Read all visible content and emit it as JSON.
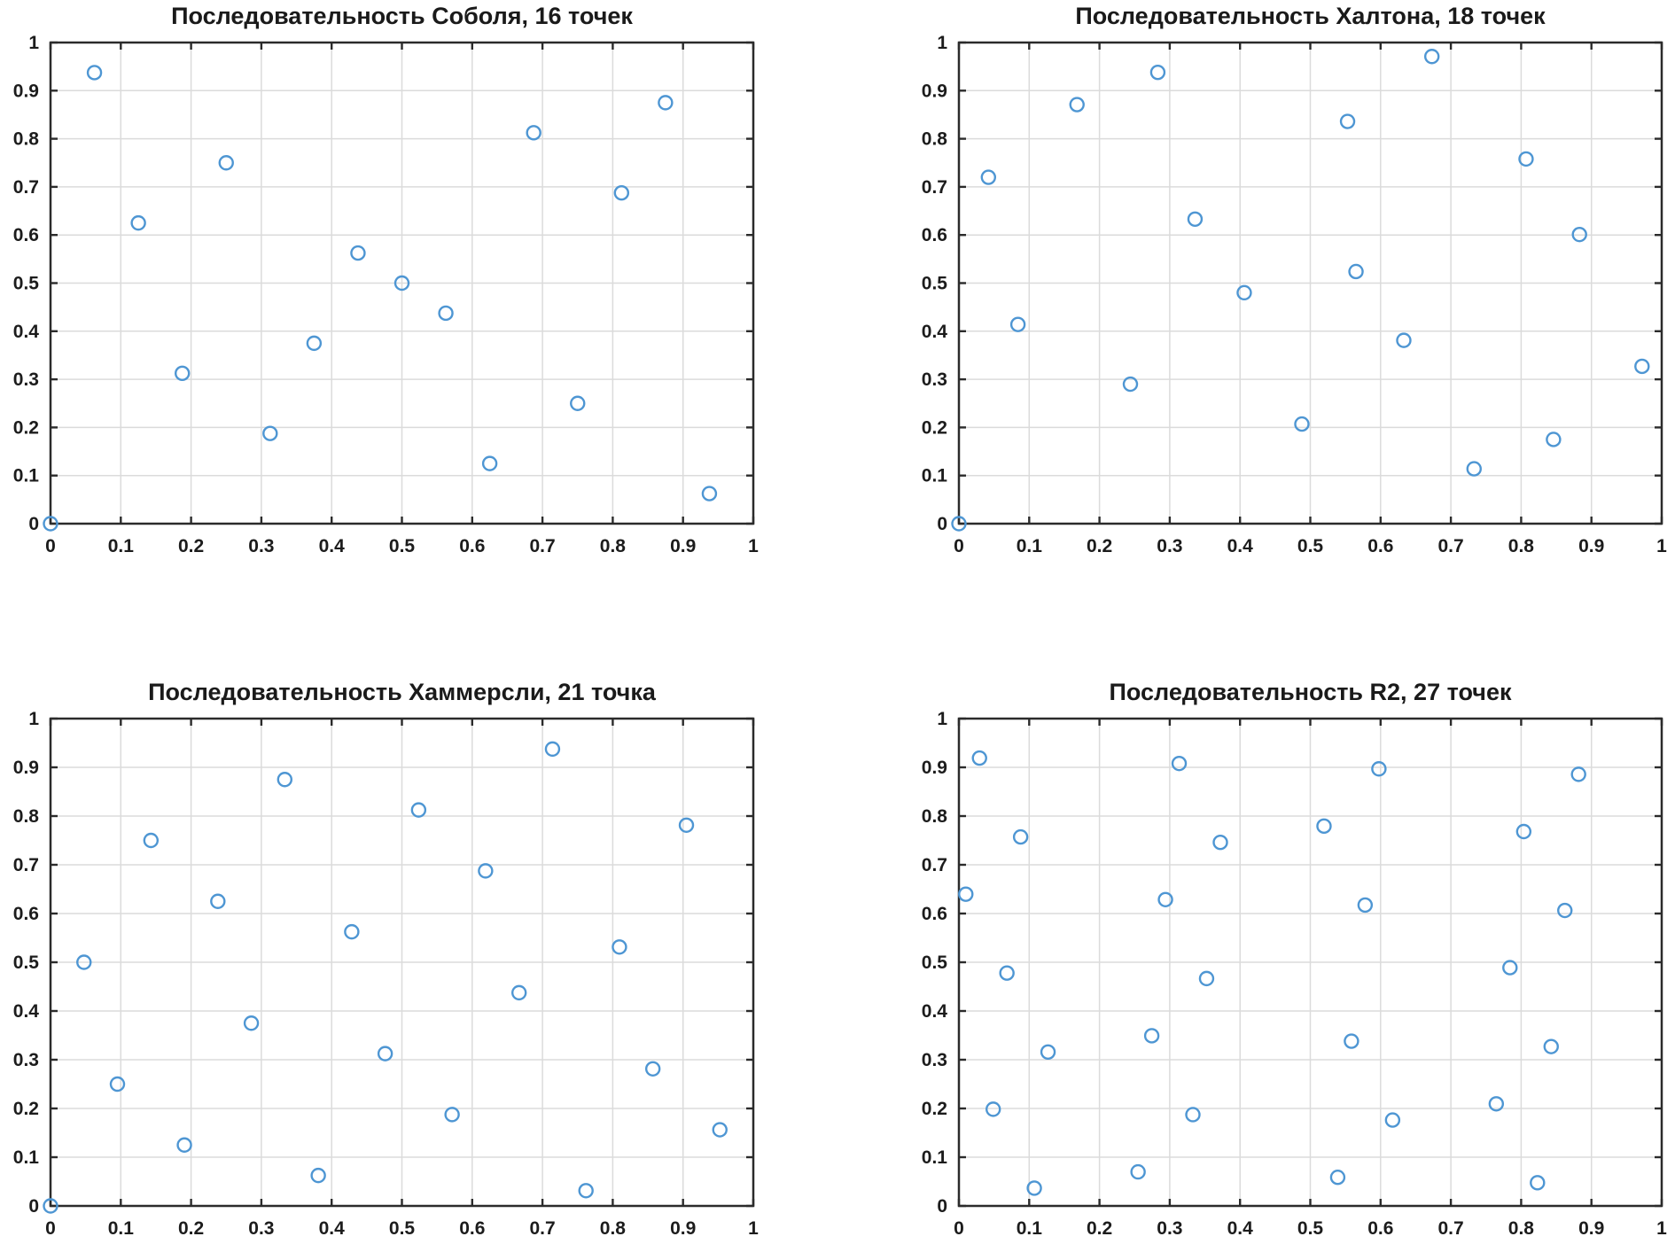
{
  "page": {
    "background": "#ffffff",
    "description_labels": []
  },
  "colors": {
    "marker_stroke": "#4E96D3",
    "grid_line": "#dbdbdb",
    "axis_frame": "#2b2b2b",
    "tick_mark": "#2b2b2b",
    "label_text": "#1c1c1c",
    "title_text": "#1a1a1a"
  },
  "axes_common": {
    "xlim": [
      0,
      1
    ],
    "ylim": [
      0,
      1
    ],
    "tick_step": 0.1,
    "grid": true,
    "box": true,
    "xtick_labels": [
      "0",
      "0.1",
      "0.2",
      "0.3",
      "0.4",
      "0.5",
      "0.6",
      "0.7",
      "0.8",
      "0.9",
      "1"
    ],
    "ytick_labels": [
      "0",
      "0.1",
      "0.2",
      "0.3",
      "0.4",
      "0.5",
      "0.6",
      "0.7",
      "0.8",
      "0.9",
      "1"
    ],
    "marker": "open-circle"
  },
  "chart_data": [
    {
      "type": "scatter",
      "title": "Последовательность Соболя, 16 точек",
      "n_points": 16,
      "xlim": [
        0,
        1
      ],
      "ylim": [
        0,
        1
      ],
      "points": [
        [
          0,
          0
        ],
        [
          0.5,
          0.5
        ],
        [
          0.75,
          0.25
        ],
        [
          0.25,
          0.75
        ],
        [
          0.375,
          0.375
        ],
        [
          0.875,
          0.875
        ],
        [
          0.625,
          0.125
        ],
        [
          0.125,
          0.625
        ],
        [
          0.1875,
          0.3125
        ],
        [
          0.6875,
          0.8125
        ],
        [
          0.9375,
          0.0625
        ],
        [
          0.4375,
          0.5625
        ],
        [
          0.3125,
          0.1875
        ],
        [
          0.8125,
          0.6875
        ],
        [
          0.5625,
          0.4375
        ],
        [
          0.0625,
          0.9375
        ]
      ]
    },
    {
      "type": "scatter",
      "title": "Последовательность Халтона, 18 точек",
      "n_points": 18,
      "xlim": [
        0,
        1
      ],
      "ylim": [
        0,
        1
      ],
      "points": [
        [
          0,
          0
        ],
        [
          0.042,
          0.72
        ],
        [
          0.084,
          0.414
        ],
        [
          0.168,
          0.871
        ],
        [
          0.244,
          0.29
        ],
        [
          0.283,
          0.938
        ],
        [
          0.336,
          0.633
        ],
        [
          0.406,
          0.48
        ],
        [
          0.488,
          0.207
        ],
        [
          0.553,
          0.836
        ],
        [
          0.565,
          0.524
        ],
        [
          0.633,
          0.381
        ],
        [
          0.673,
          0.971
        ],
        [
          0.733,
          0.114
        ],
        [
          0.807,
          0.758
        ],
        [
          0.846,
          0.175
        ],
        [
          0.883,
          0.601
        ],
        [
          0.972,
          0.327
        ]
      ]
    },
    {
      "type": "scatter",
      "title": "Последовательность Хаммерсли, 21 точка",
      "n_points": 21,
      "xlim": [
        0,
        1
      ],
      "ylim": [
        0,
        1
      ],
      "points": [
        [
          0,
          0
        ],
        [
          0.0476,
          0.5
        ],
        [
          0.0952,
          0.25
        ],
        [
          0.1429,
          0.75
        ],
        [
          0.1905,
          0.125
        ],
        [
          0.2381,
          0.625
        ],
        [
          0.2857,
          0.375
        ],
        [
          0.3333,
          0.875
        ],
        [
          0.381,
          0.0625
        ],
        [
          0.4286,
          0.5625
        ],
        [
          0.4762,
          0.3125
        ],
        [
          0.5238,
          0.8125
        ],
        [
          0.5714,
          0.1875
        ],
        [
          0.619,
          0.6875
        ],
        [
          0.6667,
          0.4375
        ],
        [
          0.7143,
          0.9375
        ],
        [
          0.7619,
          0.0313
        ],
        [
          0.8095,
          0.5313
        ],
        [
          0.8571,
          0.2813
        ],
        [
          0.9048,
          0.7813
        ],
        [
          0.9524,
          0.1563
        ]
      ]
    },
    {
      "type": "scatter",
      "title": "Последовательность R2, 27 точек",
      "n_points": 27,
      "xlim": [
        0,
        1
      ],
      "ylim": [
        0,
        1
      ],
      "points": [
        [
          0.2549,
          0.0698
        ],
        [
          0.0098,
          0.6397
        ],
        [
          0.7646,
          0.2095
        ],
        [
          0.5195,
          0.7794
        ],
        [
          0.2744,
          0.3492
        ],
        [
          0.0293,
          0.919
        ],
        [
          0.7841,
          0.4889
        ],
        [
          0.539,
          0.0587
        ],
        [
          0.2939,
          0.6286
        ],
        [
          0.0488,
          0.1984
        ],
        [
          0.8037,
          0.7682
        ],
        [
          0.5585,
          0.3381
        ],
        [
          0.3134,
          0.9079
        ],
        [
          0.0683,
          0.4778
        ],
        [
          0.8232,
          0.0476
        ],
        [
          0.578,
          0.6174
        ],
        [
          0.3329,
          0.1873
        ],
        [
          0.0878,
          0.7571
        ],
        [
          0.8427,
          0.327
        ],
        [
          0.5976,
          0.8968
        ],
        [
          0.3524,
          0.4666
        ],
        [
          0.1073,
          0.0365
        ],
        [
          0.8622,
          0.6063
        ],
        [
          0.6171,
          0.1762
        ],
        [
          0.372,
          0.746
        ],
        [
          0.1268,
          0.3158
        ],
        [
          0.8817,
          0.8857
        ]
      ]
    }
  ]
}
